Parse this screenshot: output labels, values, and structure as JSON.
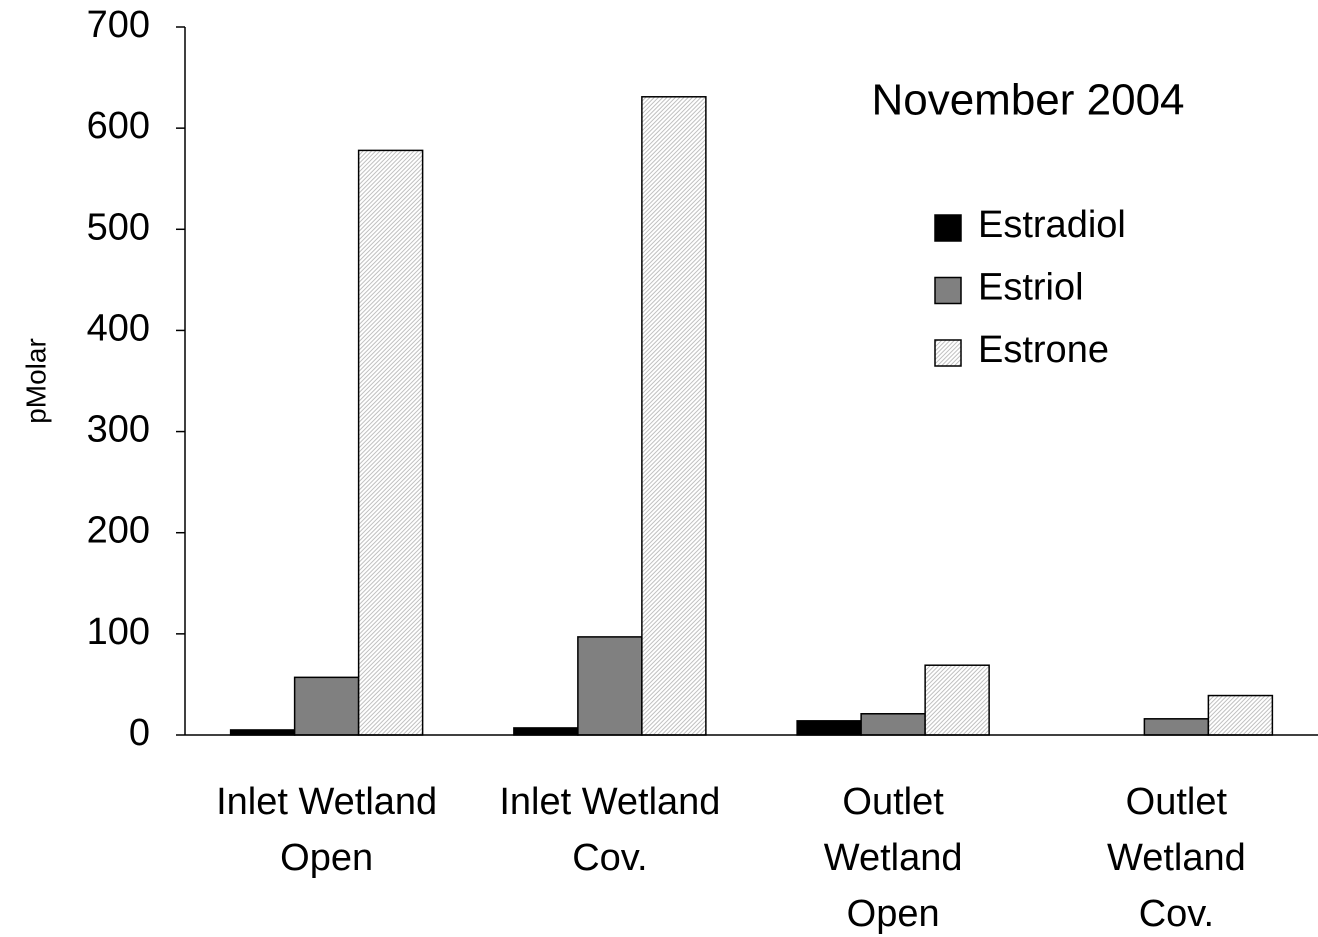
{
  "chart_data": {
    "type": "bar",
    "annotation": "November 2004",
    "y_label": "pMolar",
    "categories": [
      "Inlet Wetland\nOpen",
      "Inlet Wetland\nCov.",
      "Outlet\nWetland\nOpen",
      "Outlet\nWetland\nCov."
    ],
    "series": [
      {
        "name": "Estradiol",
        "color": "#000000",
        "values": [
          5,
          7,
          14,
          0
        ]
      },
      {
        "name": "Estriol",
        "color": "#808080",
        "values": [
          57,
          97,
          21,
          16
        ]
      },
      {
        "name": "Estrone",
        "color": "#c0c0c0",
        "pattern": "hatched",
        "values": [
          578,
          631,
          69,
          39
        ]
      }
    ],
    "ylim": [
      0,
      700
    ],
    "yticks": [
      0,
      100,
      200,
      300,
      400,
      500,
      600,
      700
    ],
    "grid": false
  }
}
